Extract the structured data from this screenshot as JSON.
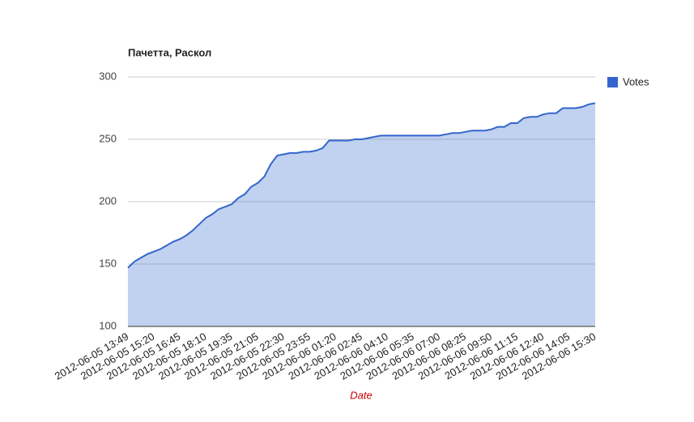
{
  "chart_data": {
    "type": "area",
    "title": "Пачетта, Раскол",
    "x_label": "Date",
    "categories": [
      "2012-06-05 13:49",
      null,
      null,
      null,
      "2012-06-05 15:20",
      null,
      null,
      null,
      "2012-06-05 16:45",
      null,
      null,
      null,
      "2012-06-05 18:10",
      null,
      null,
      null,
      "2012-06-05 19:35",
      null,
      null,
      null,
      "2012-06-05 21:05",
      null,
      null,
      null,
      "2012-06-05 22:30",
      null,
      null,
      null,
      "2012-06-05 23:55",
      null,
      null,
      null,
      "2012-06-06 01:20",
      null,
      null,
      null,
      "2012-06-06 02:45",
      null,
      null,
      null,
      "2012-06-06 04:10",
      null,
      null,
      null,
      "2012-06-06 05:35",
      null,
      null,
      null,
      "2012-06-06 07:00",
      null,
      null,
      null,
      "2012-06-06 08:25",
      null,
      null,
      null,
      "2012-06-06 09:50",
      null,
      null,
      null,
      "2012-06-06 11:15",
      null,
      null,
      null,
      "2012-06-06 12:40",
      null,
      null,
      null,
      "2012-06-06 14:05",
      null,
      null,
      null,
      "2012-06-06 15:30"
    ],
    "series": [
      {
        "name": "Votes",
        "color": "#3366cc",
        "values": [
          147,
          152,
          155,
          158,
          160,
          162,
          165,
          168,
          170,
          173,
          177,
          182,
          187,
          190,
          194,
          196,
          198,
          203,
          206,
          212,
          215,
          220,
          230,
          237,
          238,
          239,
          239,
          240,
          240,
          241,
          243,
          249,
          249,
          249,
          249,
          250,
          250,
          251,
          252,
          253,
          253,
          253,
          253,
          253,
          253,
          253,
          253,
          253,
          253,
          254,
          255,
          255,
          256,
          257,
          257,
          257,
          258,
          260,
          260,
          263,
          263,
          267,
          268,
          268,
          270,
          271,
          271,
          275,
          275,
          275,
          276,
          278,
          279
        ]
      }
    ],
    "ylim": [
      100,
      300
    ],
    "yticks": [
      100,
      150,
      200,
      250,
      300
    ],
    "grid": true,
    "legend": "right"
  }
}
